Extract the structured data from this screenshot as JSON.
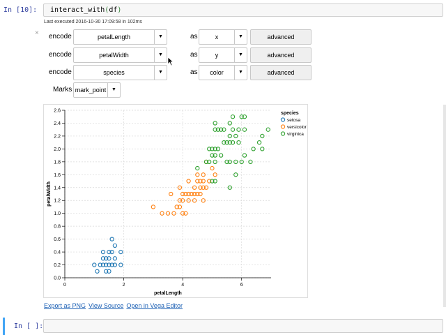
{
  "cell1": {
    "prompt": "In [10]:",
    "code_fn": "interact_with",
    "code_open": "(",
    "code_arg": "df",
    "code_close": ")",
    "exec_info": "Last executed 2016-10-30 17:09:58 in 102ms",
    "close_glyph": "×"
  },
  "encodings": [
    {
      "label": "encode",
      "field": "petalLength",
      "as": "as",
      "channel": "x",
      "advanced": "advanced"
    },
    {
      "label": "encode",
      "field": "petalWidth",
      "as": "as",
      "channel": "y",
      "advanced": "advanced"
    },
    {
      "label": "encode",
      "field": "species",
      "as": "as",
      "channel": "color",
      "advanced": "advanced"
    }
  ],
  "marks": {
    "label": "Marks",
    "value": "mark_point"
  },
  "links": {
    "export_png": "Export as PNG",
    "view_source": "View Source",
    "open_vega": "Open in Vega Editor"
  },
  "cell2": {
    "prompt": "In [ ]:"
  },
  "icons": {
    "caret": "caret-down-icon",
    "cursor": "mouse-pointer-icon"
  },
  "chart_data": {
    "type": "scatter",
    "title": "",
    "xlabel": "petalLength",
    "ylabel": "petalWidth",
    "xlim": [
      0,
      7
    ],
    "ylim": [
      0,
      2.6
    ],
    "x_ticks": [
      "0",
      "2",
      "4",
      "6"
    ],
    "y_ticks": [
      "0.0",
      "0.2",
      "0.4",
      "0.6",
      "0.8",
      "1.0",
      "1.2",
      "1.4",
      "1.6",
      "1.8",
      "2.0",
      "2.2",
      "2.4",
      "2.6"
    ],
    "grid": true,
    "legend": {
      "title": "species",
      "placement": "top-right"
    },
    "series": [
      {
        "name": "setosa",
        "color": "#1f77b4",
        "points": [
          [
            1.0,
            0.2
          ],
          [
            1.1,
            0.1
          ],
          [
            1.2,
            0.2
          ],
          [
            1.3,
            0.2
          ],
          [
            1.3,
            0.3
          ],
          [
            1.3,
            0.4
          ],
          [
            1.4,
            0.1
          ],
          [
            1.4,
            0.2
          ],
          [
            1.4,
            0.3
          ],
          [
            1.5,
            0.1
          ],
          [
            1.5,
            0.2
          ],
          [
            1.5,
            0.3
          ],
          [
            1.5,
            0.4
          ],
          [
            1.6,
            0.2
          ],
          [
            1.6,
            0.4
          ],
          [
            1.6,
            0.6
          ],
          [
            1.7,
            0.2
          ],
          [
            1.7,
            0.3
          ],
          [
            1.7,
            0.5
          ],
          [
            1.9,
            0.2
          ],
          [
            1.9,
            0.4
          ]
        ]
      },
      {
        "name": "versicolor",
        "color": "#ff7f0e",
        "points": [
          [
            3.0,
            1.1
          ],
          [
            3.3,
            1.0
          ],
          [
            3.5,
            1.0
          ],
          [
            3.6,
            1.3
          ],
          [
            3.7,
            1.0
          ],
          [
            3.8,
            1.1
          ],
          [
            3.9,
            1.1
          ],
          [
            3.9,
            1.2
          ],
          [
            3.9,
            1.4
          ],
          [
            4.0,
            1.0
          ],
          [
            4.0,
            1.2
          ],
          [
            4.0,
            1.3
          ],
          [
            4.1,
            1.0
          ],
          [
            4.1,
            1.3
          ],
          [
            4.2,
            1.2
          ],
          [
            4.2,
            1.3
          ],
          [
            4.2,
            1.5
          ],
          [
            4.3,
            1.3
          ],
          [
            4.4,
            1.2
          ],
          [
            4.4,
            1.3
          ],
          [
            4.4,
            1.4
          ],
          [
            4.5,
            1.3
          ],
          [
            4.5,
            1.5
          ],
          [
            4.5,
            1.6
          ],
          [
            4.6,
            1.3
          ],
          [
            4.6,
            1.4
          ],
          [
            4.6,
            1.5
          ],
          [
            4.7,
            1.2
          ],
          [
            4.7,
            1.4
          ],
          [
            4.7,
            1.5
          ],
          [
            4.7,
            1.6
          ],
          [
            4.8,
            1.4
          ],
          [
            4.8,
            1.8
          ],
          [
            4.9,
            1.5
          ],
          [
            5.0,
            1.7
          ],
          [
            5.1,
            1.6
          ]
        ]
      },
      {
        "name": "virginica",
        "color": "#2ca02c",
        "points": [
          [
            4.5,
            1.7
          ],
          [
            4.8,
            1.8
          ],
          [
            4.9,
            1.8
          ],
          [
            4.9,
            2.0
          ],
          [
            5.0,
            1.5
          ],
          [
            5.0,
            1.9
          ],
          [
            5.0,
            2.0
          ],
          [
            5.1,
            1.5
          ],
          [
            5.1,
            1.8
          ],
          [
            5.1,
            1.9
          ],
          [
            5.1,
            2.0
          ],
          [
            5.1,
            2.3
          ],
          [
            5.1,
            2.4
          ],
          [
            5.2,
            2.0
          ],
          [
            5.2,
            2.3
          ],
          [
            5.3,
            1.9
          ],
          [
            5.3,
            2.3
          ],
          [
            5.4,
            2.1
          ],
          [
            5.4,
            2.3
          ],
          [
            5.5,
            1.8
          ],
          [
            5.5,
            2.1
          ],
          [
            5.6,
            1.4
          ],
          [
            5.6,
            1.8
          ],
          [
            5.6,
            2.1
          ],
          [
            5.6,
            2.2
          ],
          [
            5.6,
            2.4
          ],
          [
            5.7,
            2.1
          ],
          [
            5.7,
            2.3
          ],
          [
            5.7,
            2.5
          ],
          [
            5.8,
            1.6
          ],
          [
            5.8,
            1.8
          ],
          [
            5.8,
            2.2
          ],
          [
            5.9,
            2.1
          ],
          [
            5.9,
            2.3
          ],
          [
            6.0,
            1.8
          ],
          [
            6.0,
            2.5
          ],
          [
            6.1,
            1.9
          ],
          [
            6.1,
            2.3
          ],
          [
            6.1,
            2.5
          ],
          [
            6.3,
            1.8
          ],
          [
            6.4,
            2.0
          ],
          [
            6.6,
            2.1
          ],
          [
            6.7,
            2.0
          ],
          [
            6.7,
            2.2
          ],
          [
            6.9,
            2.3
          ]
        ]
      }
    ]
  }
}
